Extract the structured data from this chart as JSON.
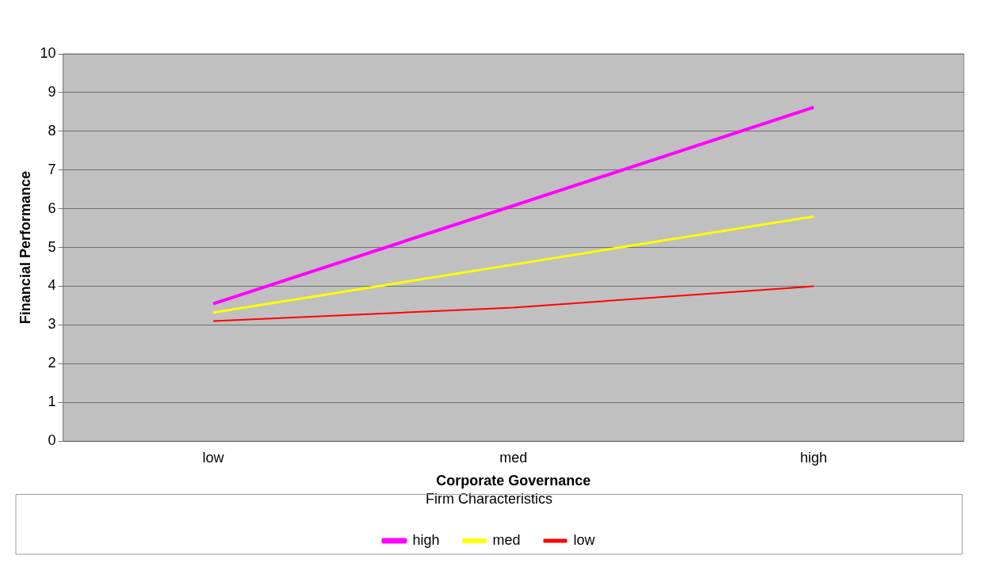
{
  "chart_data": {
    "type": "line",
    "xlabel": "Corporate Governance",
    "ylabel": "Financial Performance",
    "legend_title": "Firm Characteristics",
    "categories": [
      "low",
      "med",
      "high"
    ],
    "series": [
      {
        "name": "high",
        "color": "#ff00ff",
        "values": [
          3.55,
          6.08,
          8.62
        ]
      },
      {
        "name": "med",
        "color": "#ffff00",
        "values": [
          3.32,
          4.56,
          5.8
        ]
      },
      {
        "name": "low",
        "color": "#ff0000",
        "values": [
          3.1,
          3.45,
          4.0
        ]
      }
    ],
    "ylim": [
      0,
      10
    ],
    "yticks": [
      0,
      1,
      2,
      3,
      4,
      5,
      6,
      7,
      8,
      9,
      10
    ],
    "grid": "y",
    "legend": "bottom",
    "marker": "none",
    "line_style": "solid"
  }
}
